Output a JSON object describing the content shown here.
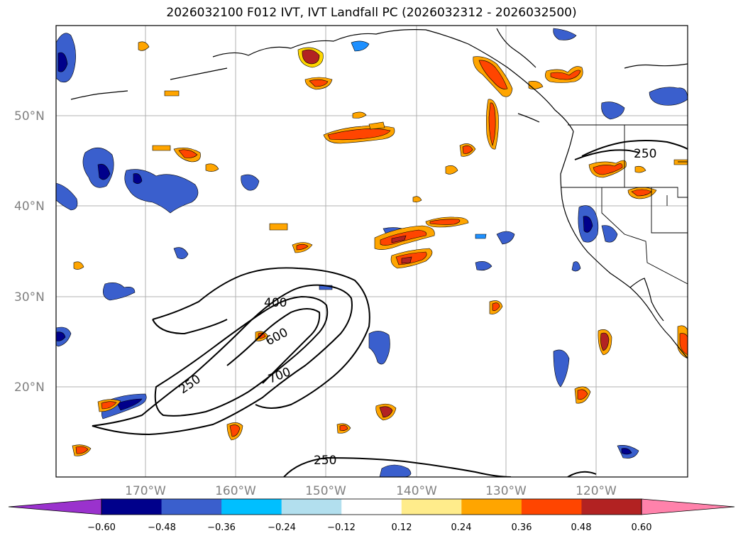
{
  "title": "2026032100 F012 IVT, IVT Landfall PC (2026032312 - 2026032500)",
  "latitude_labels": [
    "50°N",
    "40°N",
    "30°N",
    "20°N"
  ],
  "longitude_labels": [
    "170°W",
    "160°W",
    "150°W",
    "140°W",
    "130°W",
    "120°W"
  ],
  "contour_labels": [
    "400",
    "600",
    "700",
    "250",
    "250",
    "250"
  ],
  "colorbar": {
    "ticks": [
      "−0.60",
      "−0.48",
      "−0.36",
      "−0.24",
      "−0.12",
      "0.12",
      "0.24",
      "0.36",
      "0.48",
      "0.60"
    ],
    "colors": [
      "#9a32cd",
      "#00008b",
      "#3a5fcd",
      "#00bfff",
      "#b2dfee",
      "#ffffff",
      "#ffec8b",
      "#ffa500",
      "#ff4500",
      "#b22222",
      "#ff82ab"
    ]
  },
  "palette": {
    "neg_strong": "#00008b",
    "neg_mid": "#3a5fcd",
    "neg_light": "#1e90ff",
    "pos_light": "#ffd700",
    "pos_mid": "#ff4500",
    "pos_strong": "#b22222",
    "grid": "#b0b0b0",
    "coast": "#000000"
  }
}
